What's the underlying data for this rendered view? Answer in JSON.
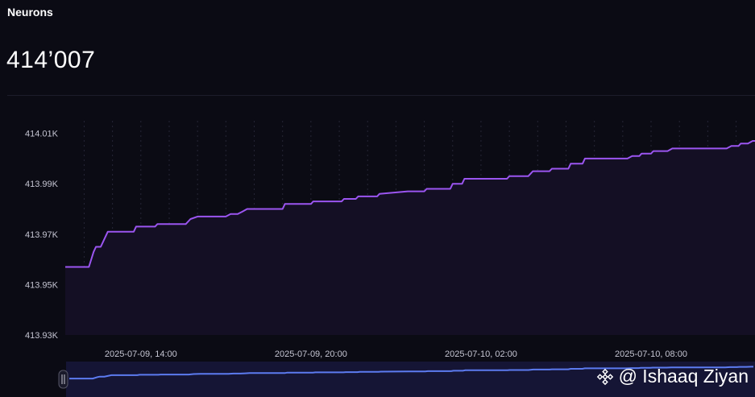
{
  "header": {
    "title": "Neurons",
    "value": "414’007"
  },
  "watermark": {
    "text": "@ Ishaaq Ziyan",
    "icon": "binance-logo-icon"
  },
  "colors": {
    "background": "#0b0b14",
    "line": "#9b55f0",
    "area": "#140f24",
    "navigator_line": "#5c7bf0",
    "navigator_bg": "#151535",
    "grid": "#262636"
  },
  "chart_data": {
    "type": "area",
    "title": "",
    "xlabel": "",
    "ylabel": "",
    "ylim": [
      413930,
      414015
    ],
    "yticks": [
      413930,
      413950,
      413970,
      413990,
      414010
    ],
    "ytick_labels": [
      "413.93K",
      "413.95K",
      "413.97K",
      "413.99K",
      "414.01K"
    ],
    "x_axis": "datetime",
    "xlim": [
      "2025-07-09 11:20",
      "2025-07-10 11:40"
    ],
    "xtick_labels": [
      "2025-07-09, 14:00",
      "2025-07-09, 20:00",
      "2025-07-10, 02:00",
      "2025-07-10, 08:00"
    ],
    "xtick_values": [
      "2025-07-09 14:00",
      "2025-07-09 20:00",
      "2025-07-10 02:00",
      "2025-07-10 08:00"
    ],
    "grid": true,
    "navigator": true,
    "series": [
      {
        "x": [
          "2025-07-09 11:20",
          "2025-07-09 12:10",
          "2025-07-09 12:20",
          "2025-07-09 12:25",
          "2025-07-09 12:35",
          "2025-07-09 12:50",
          "2025-07-09 13:45",
          "2025-07-09 13:50",
          "2025-07-09 14:30",
          "2025-07-09 14:35",
          "2025-07-09 15:35",
          "2025-07-09 15:45",
          "2025-07-09 16:00",
          "2025-07-09 17:00",
          "2025-07-09 17:10",
          "2025-07-09 17:25",
          "2025-07-09 17:35",
          "2025-07-09 17:45",
          "2025-07-09 18:00",
          "2025-07-09 19:00",
          "2025-07-09 19:05",
          "2025-07-09 20:00",
          "2025-07-09 20:05",
          "2025-07-09 21:05",
          "2025-07-09 21:10",
          "2025-07-09 21:35",
          "2025-07-09 21:40",
          "2025-07-09 22:20",
          "2025-07-09 22:25",
          "2025-07-09 23:25",
          "2025-07-10 00:00",
          "2025-07-10 00:05",
          "2025-07-10 00:55",
          "2025-07-10 01:00",
          "2025-07-10 01:20",
          "2025-07-10 01:25",
          "2025-07-10 02:55",
          "2025-07-10 03:00",
          "2025-07-10 03:40",
          "2025-07-10 03:50",
          "2025-07-10 04:25",
          "2025-07-10 04:30",
          "2025-07-10 05:05",
          "2025-07-10 05:10",
          "2025-07-10 05:35",
          "2025-07-10 05:40",
          "2025-07-10 07:10",
          "2025-07-10 07:20",
          "2025-07-10 07:35",
          "2025-07-10 07:40",
          "2025-07-10 08:00",
          "2025-07-10 08:05",
          "2025-07-10 08:35",
          "2025-07-10 08:45",
          "2025-07-10 10:40",
          "2025-07-10 10:50",
          "2025-07-10 11:05",
          "2025-07-10 11:10",
          "2025-07-10 11:25",
          "2025-07-10 11:35",
          "2025-07-10 11:40"
        ],
        "y": [
          413957,
          413957,
          413963,
          413965,
          413965,
          413971,
          413971,
          413973,
          413973,
          413974,
          413974,
          413976,
          413977,
          413977,
          413978,
          413978,
          413979,
          413980,
          413980,
          413980,
          413982,
          413982,
          413983,
          413983,
          413984,
          413984,
          413985,
          413985,
          413986,
          413987,
          413987,
          413988,
          413988,
          413990,
          413990,
          413992,
          413992,
          413993,
          413993,
          413995,
          413995,
          413996,
          413996,
          413998,
          413998,
          414000,
          414000,
          414001,
          414001,
          414002,
          414002,
          414003,
          414003,
          414004,
          414004,
          414005,
          414005,
          414006,
          414006,
          414007,
          414007
        ]
      }
    ]
  }
}
